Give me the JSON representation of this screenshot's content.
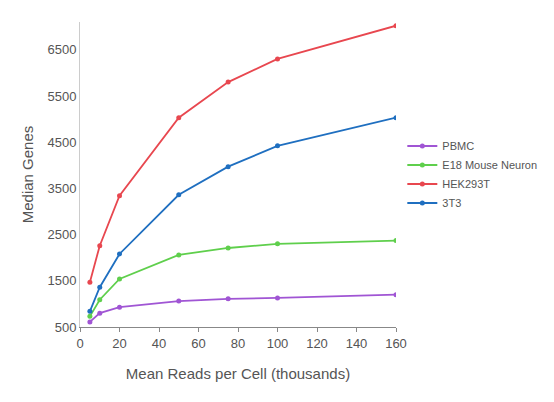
{
  "chart_data": {
    "type": "line",
    "x_label": "Mean Reads per Cell (thousands)",
    "y_label": "Median Genes",
    "x": [
      5,
      10,
      20,
      50,
      75,
      100,
      160
    ],
    "series": [
      {
        "name": "PBMC",
        "color": "#a055d4",
        "values": [
          610,
          800,
          930,
          1060,
          1110,
          1130,
          1200
        ]
      },
      {
        "name": "E18 Mouse Neuron",
        "color": "#5fcf4c",
        "values": [
          730,
          1090,
          1540,
          2060,
          2210,
          2300,
          2370
        ]
      },
      {
        "name": "HEK293T",
        "color": "#e8474f",
        "values": [
          1470,
          2260,
          3340,
          5030,
          5800,
          6300,
          7020
        ]
      },
      {
        "name": "3T3",
        "color": "#1f6fc0",
        "values": [
          840,
          1360,
          2080,
          3360,
          3970,
          4420,
          5030
        ]
      }
    ],
    "xlim": [
      0,
      160
    ],
    "xticks": [
      0,
      20,
      40,
      60,
      80,
      100,
      120,
      140,
      160
    ],
    "ylim": [
      500,
      7100
    ],
    "yticks": [
      500,
      1500,
      2500,
      3500,
      4500,
      5500,
      6500
    ],
    "grid": false,
    "legend": "right",
    "marker": "circle",
    "line_style": "solid"
  }
}
